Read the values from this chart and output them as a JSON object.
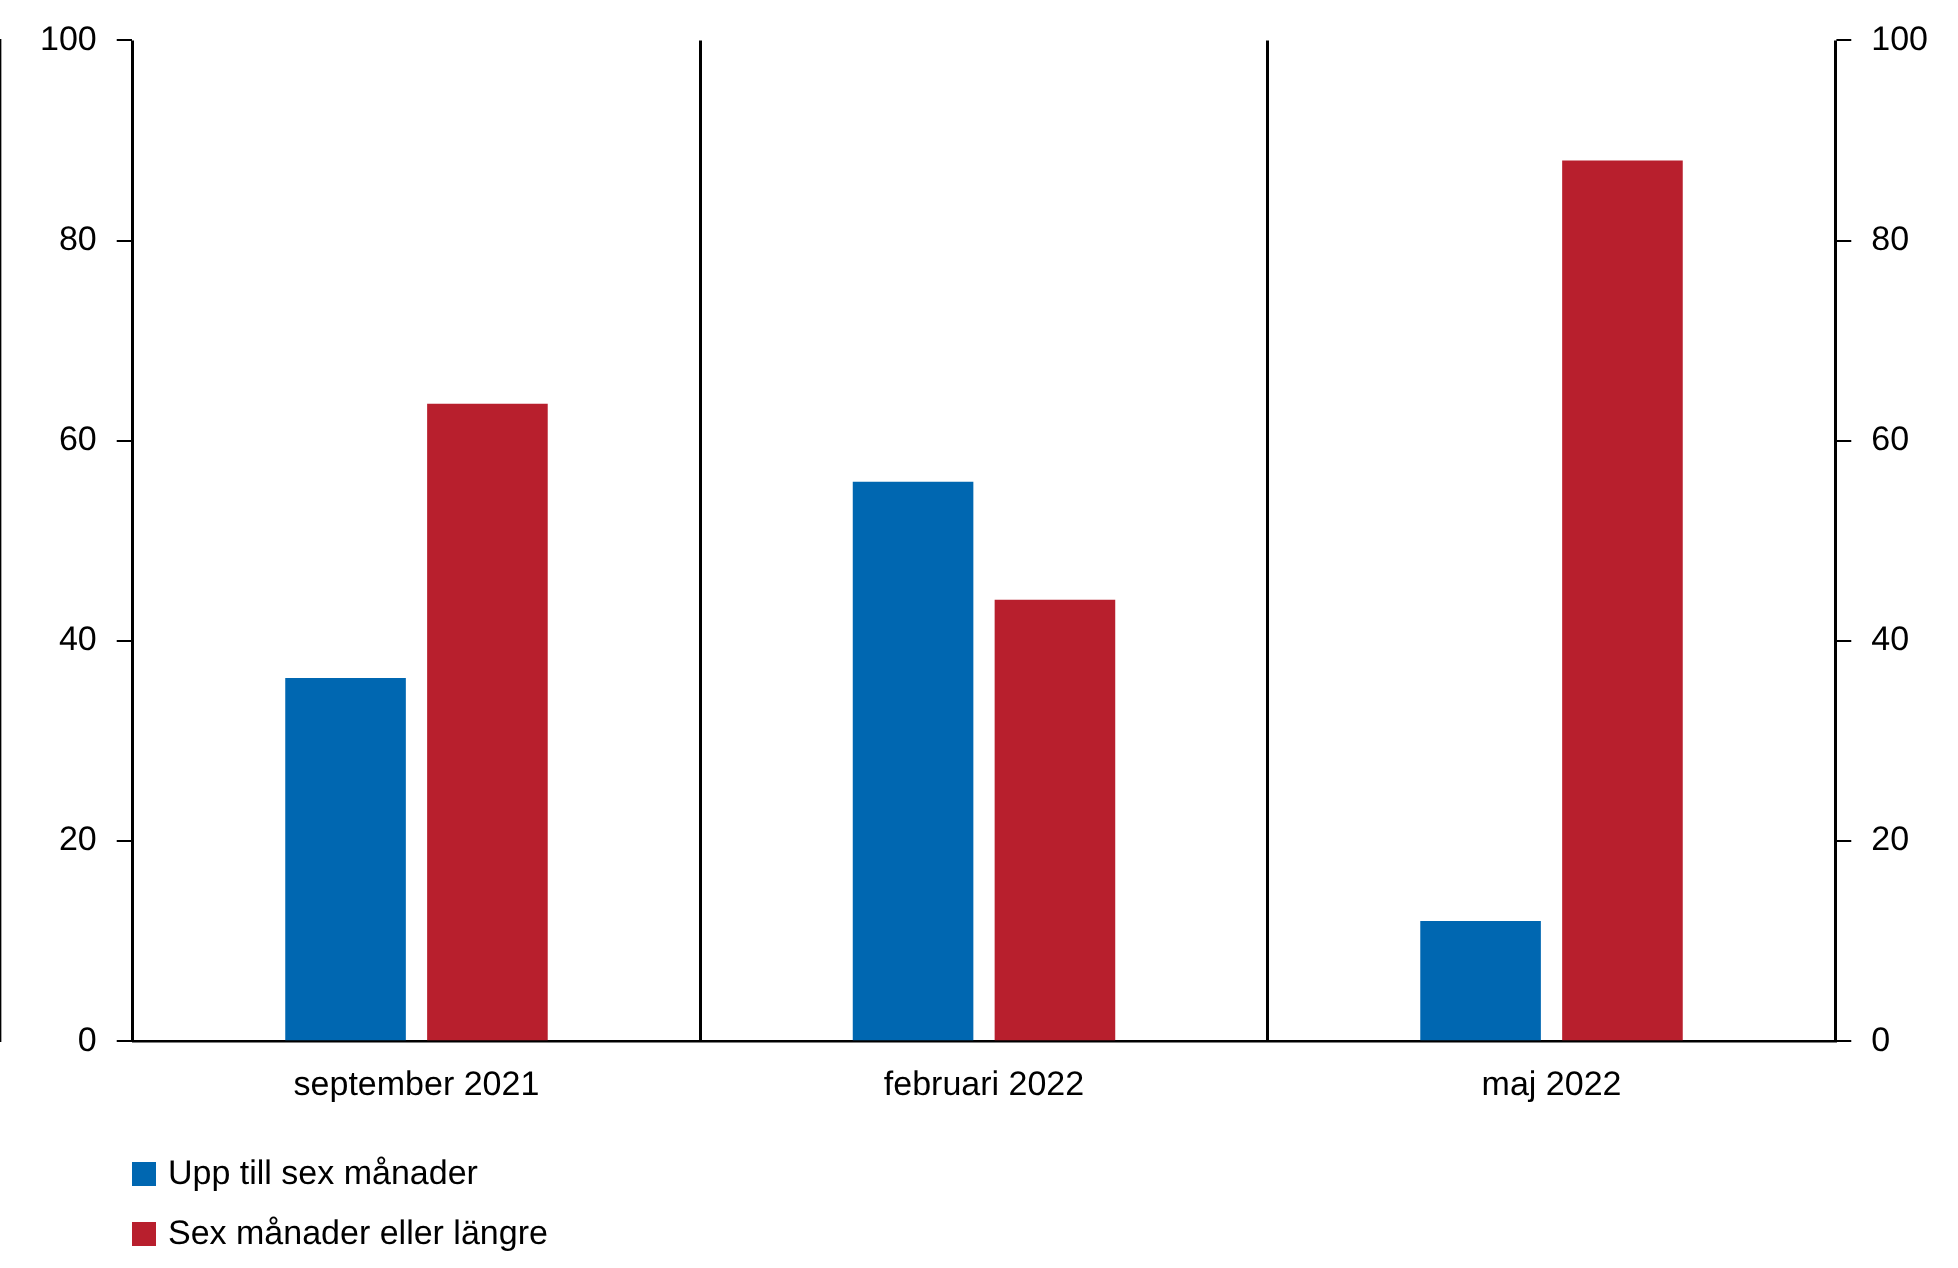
{
  "chart_data": {
    "type": "bar",
    "categories": [
      "september 2021",
      "februari 2022",
      "maj 2022"
    ],
    "series": [
      {
        "name": "Upp till sex månader",
        "color": "#0067b1",
        "values": [
          36.3,
          55.9,
          12.0
        ]
      },
      {
        "name": "Sex månader eller längre",
        "color": "#b81f2d",
        "values": [
          63.7,
          44.1,
          88.0
        ]
      }
    ],
    "ylim": [
      0,
      100
    ],
    "yticks": [
      0,
      20,
      40,
      60,
      80,
      100
    ],
    "y2lim": [
      0,
      100
    ],
    "y2ticks": [
      0,
      20,
      40,
      60,
      80,
      100
    ],
    "grid": "x",
    "legend": "bottom left"
  }
}
